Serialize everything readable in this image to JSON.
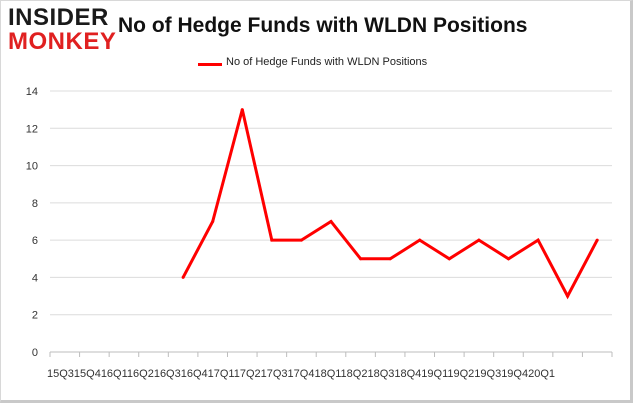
{
  "logo": {
    "line1": "INSIDER",
    "line2": "MONKEY"
  },
  "chart_data": {
    "type": "line",
    "title": "No of Hedge Funds with WLDN Positions",
    "xlabel": "",
    "ylabel": "",
    "ylim": [
      0,
      14
    ],
    "yticks": [
      0,
      2,
      4,
      6,
      8,
      10,
      12,
      14
    ],
    "grid": "y",
    "legend_position": "top-center",
    "categories": [
      "15Q3",
      "15Q4",
      "16Q1",
      "16Q2",
      "16Q3",
      "16Q4",
      "17Q1",
      "17Q2",
      "17Q3",
      "17Q4",
      "18Q1",
      "18Q2",
      "18Q3",
      "18Q4",
      "19Q1",
      "19Q2",
      "19Q3",
      "19Q4",
      "20Q1"
    ],
    "x_tick_text": "15Q315Q416Q116Q216Q316Q417Q117Q217Q317Q418Q118Q218Q318Q419Q119Q219Q319Q420Q1",
    "series": [
      {
        "name": "No of Hedge Funds with WLDN Positions",
        "color": "#ff0000",
        "values": [
          null,
          null,
          null,
          null,
          4,
          7,
          13,
          6,
          6,
          7,
          5,
          5,
          6,
          5,
          6,
          5,
          6,
          3,
          6
        ]
      }
    ]
  }
}
